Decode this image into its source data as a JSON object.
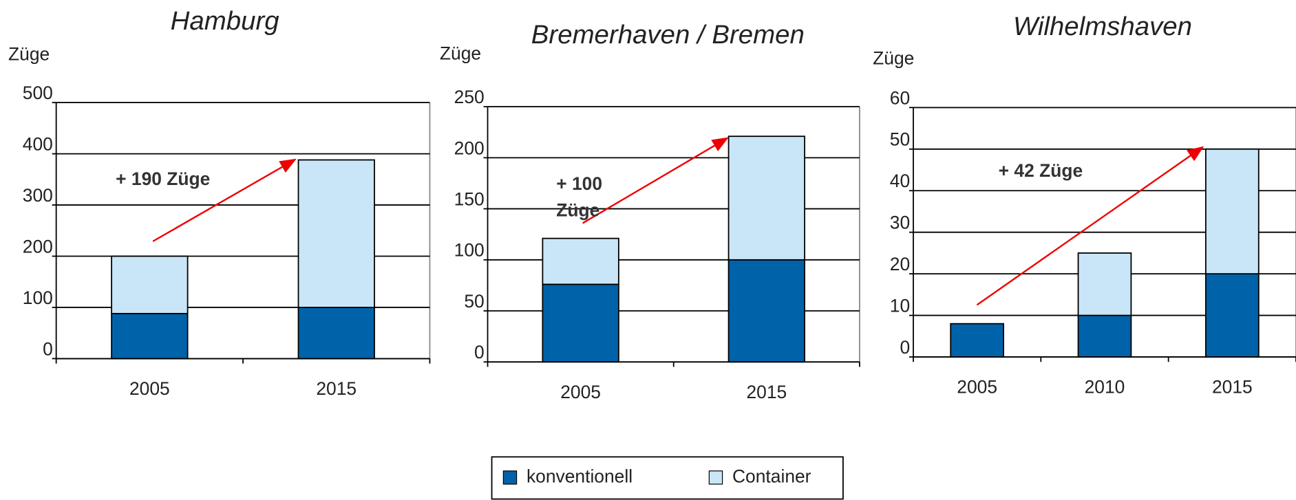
{
  "chart_data": [
    {
      "type": "bar",
      "stacked": true,
      "title": "Hamburg",
      "y_label": "Züge",
      "annotation": "+ 190 Züge",
      "categories": [
        "2005",
        "2015"
      ],
      "series": [
        {
          "name": "konventionell",
          "color": "#0063aa",
          "values": [
            88,
            100
          ]
        },
        {
          "name": "Container",
          "color": "#c9e6f8",
          "values": [
            112,
            288
          ]
        }
      ],
      "ylim": [
        0,
        500
      ],
      "yticks": [
        0,
        100,
        200,
        300,
        400,
        500
      ],
      "grid": true
    },
    {
      "type": "bar",
      "stacked": true,
      "title": "Bremerhaven / Bremen",
      "y_label": "Züge",
      "annotation": "+ 100 Züge",
      "categories": [
        "2005",
        "2015"
      ],
      "series": [
        {
          "name": "konventionell",
          "color": "#0063aa",
          "values": [
            76,
            100
          ]
        },
        {
          "name": "Container",
          "color": "#c9e6f8",
          "values": [
            45,
            121
          ]
        }
      ],
      "ylim": [
        0,
        250
      ],
      "yticks": [
        0,
        50,
        100,
        150,
        200,
        250
      ],
      "grid": true
    },
    {
      "type": "bar",
      "stacked": true,
      "title": "Wilhelmshaven",
      "y_label": "Züge",
      "annotation": "+ 42 Züge",
      "categories": [
        "2005",
        "2010",
        "2015"
      ],
      "series": [
        {
          "name": "konventionell",
          "color": "#0063aa",
          "values": [
            8,
            10,
            20
          ]
        },
        {
          "name": "Container",
          "color": "#c9e6f8",
          "values": [
            0,
            15,
            30
          ]
        }
      ],
      "ylim": [
        0,
        60
      ],
      "yticks": [
        0,
        10,
        20,
        30,
        40,
        50,
        60
      ],
      "grid": true
    }
  ]
}
